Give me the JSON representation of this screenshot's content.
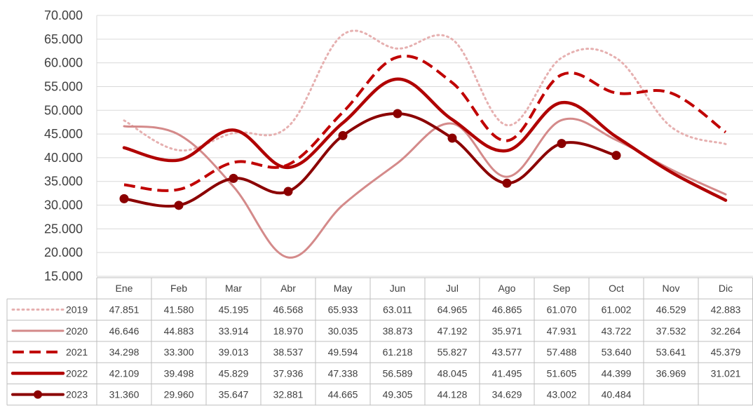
{
  "chart_data": {
    "type": "line",
    "categories": [
      "Ene",
      "Feb",
      "Mar",
      "Abr",
      "May",
      "Jun",
      "Jul",
      "Ago",
      "Sep",
      "Oct",
      "Nov",
      "Dic"
    ],
    "ylim": [
      15000,
      70000
    ],
    "yticks": [
      "15.000",
      "20.000",
      "25.000",
      "30.000",
      "35.000",
      "40.000",
      "45.000",
      "50.000",
      "55.000",
      "60.000",
      "65.000",
      "70.000"
    ],
    "grid": true,
    "legend": "data-table-left",
    "series": [
      {
        "name": "2019",
        "color": "#e6b0b0",
        "style": "dotted",
        "values": [
          47851,
          41580,
          45195,
          46568,
          65933,
          63011,
          64965,
          46865,
          61070,
          61002,
          46529,
          42883
        ],
        "labels": [
          "47.851",
          "41.580",
          "45.195",
          "46.568",
          "65.933",
          "63.011",
          "64.965",
          "46.865",
          "61.070",
          "61.002",
          "46.529",
          "42.883"
        ]
      },
      {
        "name": "2020",
        "color": "#d48a8a",
        "style": "solid-thin",
        "values": [
          46646,
          44883,
          33914,
          18970,
          30035,
          38873,
          47192,
          35971,
          47931,
          43722,
          37532,
          32264
        ],
        "labels": [
          "46.646",
          "44.883",
          "33.914",
          "18.970",
          "30.035",
          "38.873",
          "47.192",
          "35.971",
          "47.931",
          "43.722",
          "37.532",
          "32.264"
        ]
      },
      {
        "name": "2021",
        "color": "#c00000",
        "style": "dashed",
        "values": [
          34298,
          33300,
          39013,
          38537,
          49594,
          61218,
          55827,
          43577,
          57488,
          53640,
          53641,
          45379
        ],
        "labels": [
          "34.298",
          "33.300",
          "39.013",
          "38.537",
          "49.594",
          "61.218",
          "55.827",
          "43.577",
          "57.488",
          "53.640",
          "53.641",
          "45.379"
        ]
      },
      {
        "name": "2022",
        "color": "#b00000",
        "style": "solid-thick",
        "values": [
          42109,
          39498,
          45829,
          37936,
          47338,
          56589,
          48045,
          41495,
          51605,
          44399,
          36969,
          31021
        ],
        "labels": [
          "42.109",
          "39.498",
          "45.829",
          "37.936",
          "47.338",
          "56.589",
          "48.045",
          "41.495",
          "51.605",
          "44.399",
          "36.969",
          "31.021"
        ]
      },
      {
        "name": "2023",
        "color": "#8b0000",
        "style": "solid-markers",
        "values": [
          31360,
          29960,
          35647,
          32881,
          44665,
          49305,
          44128,
          34629,
          43002,
          40484,
          null,
          null
        ],
        "labels": [
          "31.360",
          "29.960",
          "35.647",
          "32.881",
          "44.665",
          "49.305",
          "44.128",
          "34.629",
          "43.002",
          "40.484",
          "",
          ""
        ]
      }
    ]
  }
}
